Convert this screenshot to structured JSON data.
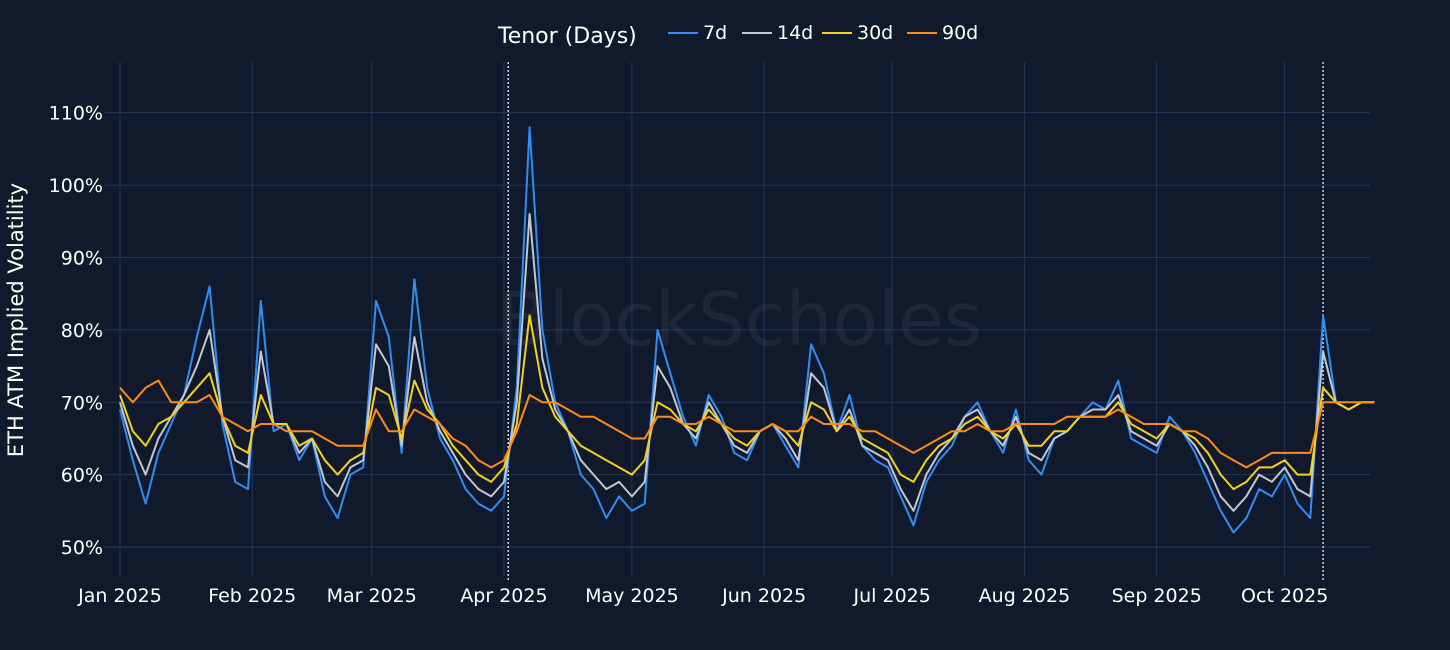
{
  "watermark": "BlockScholes",
  "chart_data": {
    "type": "line",
    "title": "",
    "xlabel": "",
    "ylabel": "ETH ATM Implied Volatility",
    "legend_title": "Tenor (Days)",
    "legend_position": "top-center",
    "grid": true,
    "x_start": "2025-01-01",
    "x_end": "2025-10-21",
    "ylim": [
      46,
      117
    ],
    "y_ticks": [
      50,
      60,
      70,
      80,
      90,
      100,
      110
    ],
    "y_tick_labels": [
      "50%",
      "60%",
      "70%",
      "80%",
      "90%",
      "100%",
      "110%"
    ],
    "x_ticks": [
      0,
      31,
      59,
      90,
      120,
      151,
      181,
      212,
      243,
      273
    ],
    "x_tick_labels": [
      "Jan 2025",
      "Feb 2025",
      "Mar 2025",
      "Apr 2025",
      "May 2025",
      "Jun 2025",
      "Jul 2025",
      "Aug 2025",
      "Sep 2025",
      "Oct 2025"
    ],
    "annotations": [
      {
        "type": "vline",
        "x": 91,
        "style": "dotted"
      },
      {
        "type": "vline",
        "x": 282,
        "style": "dotted"
      }
    ],
    "x": [
      0,
      3,
      6,
      9,
      12,
      15,
      18,
      21,
      24,
      27,
      30,
      33,
      36,
      39,
      42,
      45,
      48,
      51,
      54,
      57,
      60,
      63,
      66,
      69,
      72,
      75,
      78,
      81,
      84,
      87,
      90,
      93,
      96,
      99,
      102,
      105,
      108,
      111,
      114,
      117,
      120,
      123,
      126,
      129,
      132,
      135,
      138,
      141,
      144,
      147,
      150,
      153,
      156,
      159,
      162,
      165,
      168,
      171,
      174,
      177,
      180,
      183,
      186,
      189,
      192,
      195,
      198,
      201,
      204,
      207,
      210,
      213,
      216,
      219,
      222,
      225,
      228,
      231,
      234,
      237,
      240,
      243,
      246,
      249,
      252,
      255,
      258,
      261,
      264,
      267,
      270,
      273,
      276,
      279,
      282,
      285,
      288,
      291,
      294
    ],
    "series": [
      {
        "name": "7d",
        "color": "#2f8df4",
        "width": 2.0,
        "values": [
          69,
          62,
          56,
          63,
          67,
          71,
          79,
          86,
          67,
          59,
          58,
          84,
          66,
          67,
          62,
          65,
          57,
          54,
          60,
          61,
          84,
          79,
          63,
          87,
          72,
          65,
          62,
          58,
          56,
          55,
          57,
          72,
          108,
          80,
          70,
          66,
          60,
          58,
          54,
          57,
          55,
          56,
          80,
          74,
          68,
          64,
          71,
          68,
          63,
          62,
          66,
          67,
          64,
          61,
          78,
          74,
          66,
          71,
          64,
          62,
          61,
          57,
          53,
          59,
          62,
          64,
          68,
          70,
          66,
          63,
          69,
          62,
          60,
          65,
          66,
          68,
          70,
          69,
          73,
          65,
          64,
          63,
          68,
          66,
          63,
          59,
          55,
          52,
          54,
          58,
          57,
          60,
          56,
          54,
          82,
          70,
          69,
          70,
          70
        ]
      },
      {
        "name": "14d",
        "color": "#c3c7d1",
        "width": 2.0,
        "values": [
          70,
          64,
          60,
          65,
          68,
          71,
          75,
          80,
          68,
          62,
          61,
          77,
          67,
          67,
          63,
          65,
          59,
          57,
          61,
          62,
          78,
          75,
          64,
          79,
          70,
          66,
          63,
          60,
          58,
          57,
          59,
          70,
          96,
          76,
          69,
          66,
          62,
          60,
          58,
          59,
          57,
          59,
          75,
          72,
          67,
          65,
          70,
          67,
          64,
          63,
          66,
          67,
          65,
          62,
          74,
          72,
          66,
          69,
          64,
          63,
          62,
          58,
          55,
          60,
          63,
          65,
          68,
          69,
          66,
          64,
          68,
          63,
          62,
          65,
          66,
          68,
          69,
          69,
          71,
          66,
          65,
          64,
          67,
          66,
          64,
          61,
          57,
          55,
          57,
          60,
          59,
          61,
          58,
          57,
          77,
          70,
          69,
          70,
          70
        ]
      },
      {
        "name": "30d",
        "color": "#f2d21b",
        "width": 2.0,
        "values": [
          71,
          66,
          64,
          67,
          68,
          70,
          72,
          74,
          68,
          64,
          63,
          71,
          67,
          67,
          64,
          65,
          62,
          60,
          62,
          63,
          72,
          71,
          65,
          73,
          69,
          67,
          64,
          62,
          60,
          59,
          61,
          67,
          82,
          72,
          68,
          66,
          64,
          63,
          62,
          61,
          60,
          62,
          70,
          69,
          67,
          66,
          69,
          67,
          65,
          64,
          66,
          67,
          66,
          64,
          70,
          69,
          66,
          68,
          65,
          64,
          63,
          60,
          59,
          62,
          64,
          65,
          67,
          68,
          66,
          65,
          67,
          64,
          64,
          66,
          66,
          68,
          68,
          68,
          70,
          67,
          66,
          65,
          67,
          66,
          65,
          63,
          60,
          58,
          59,
          61,
          61,
          62,
          60,
          60,
          72,
          70,
          69,
          70,
          70
        ]
      },
      {
        "name": "90d",
        "color": "#ff8a1a",
        "width": 2.0,
        "values": [
          72,
          70,
          72,
          73,
          70,
          70,
          70,
          71,
          68,
          67,
          66,
          67,
          67,
          66,
          66,
          66,
          65,
          64,
          64,
          64,
          69,
          66,
          66,
          69,
          68,
          67,
          65,
          64,
          62,
          61,
          62,
          66,
          71,
          70,
          70,
          69,
          68,
          68,
          67,
          66,
          65,
          65,
          68,
          68,
          67,
          67,
          68,
          67,
          66,
          66,
          66,
          67,
          66,
          66,
          68,
          67,
          67,
          67,
          66,
          66,
          65,
          64,
          63,
          64,
          65,
          66,
          66,
          67,
          66,
          66,
          67,
          67,
          67,
          67,
          68,
          68,
          68,
          68,
          69,
          68,
          67,
          67,
          67,
          66,
          66,
          65,
          63,
          62,
          61,
          62,
          63,
          63,
          63,
          63,
          70,
          70,
          70,
          70,
          70
        ]
      }
    ]
  }
}
